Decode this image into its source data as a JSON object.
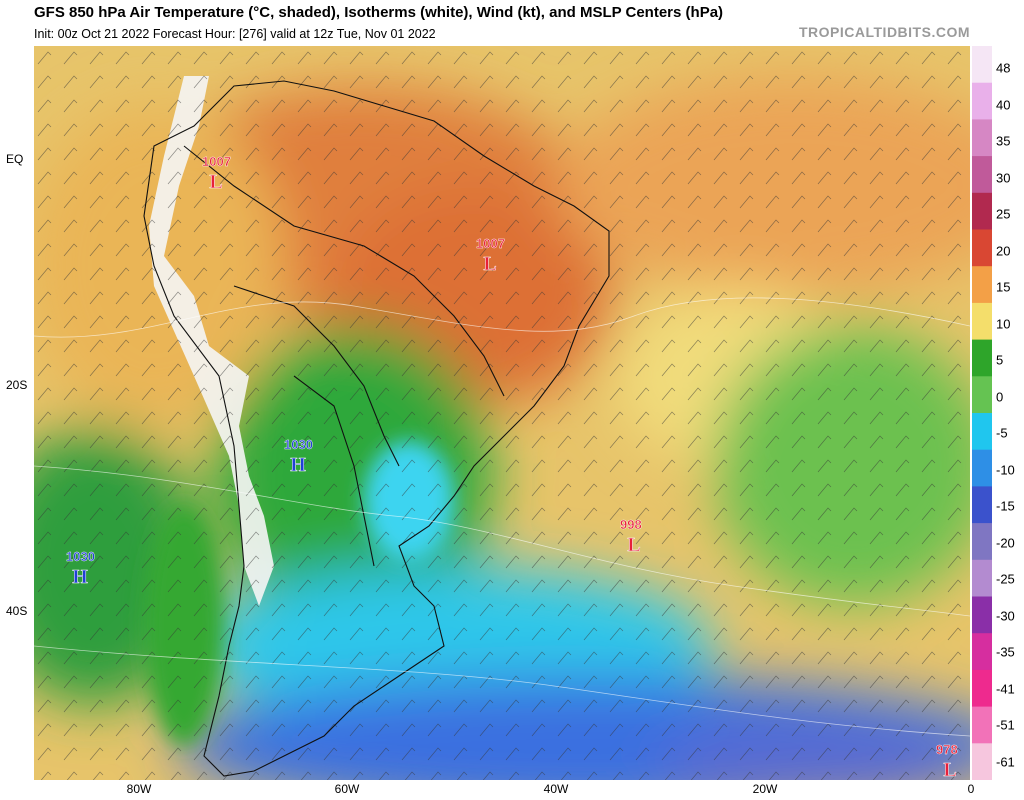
{
  "header": {
    "title": "GFS 850 hPa Air Temperature (°C, shaded), Isotherms (white), Wind (kt), and MSLP Centers (hPa)",
    "subtitle": "Init: 00z Oct 21 2022   Forecast Hour: [276]   valid at 12z Tue, Nov 01 2022",
    "brand": "TROPICALTIDBITS.COM"
  },
  "axes": {
    "lat_labels": [
      "EQ",
      "20S",
      "40S"
    ],
    "lon_labels": [
      "80W",
      "60W",
      "40W",
      "20W",
      "0"
    ]
  },
  "pressure_centers": [
    {
      "type": "L",
      "value": "1007",
      "color": "#e8203a"
    },
    {
      "type": "L",
      "value": "1007",
      "color": "#e8203a"
    },
    {
      "type": "L",
      "value": "998",
      "color": "#e8203a"
    },
    {
      "type": "L",
      "value": "978",
      "color": "#e8203a"
    },
    {
      "type": "H",
      "value": "1030",
      "color": "#1f3fd6"
    },
    {
      "type": "H",
      "value": "1030",
      "color": "#1f3fd6"
    }
  ],
  "colorbar": {
    "labels": [
      "48",
      "40",
      "35",
      "30",
      "25",
      "20",
      "15",
      "10",
      "5",
      "0",
      "-5",
      "-10",
      "-15",
      "-20",
      "-25",
      "-30",
      "-35",
      "-41",
      "-51",
      "-61"
    ],
    "colors": [
      "#f5e6f5",
      "#e9b0ea",
      "#d687c4",
      "#c05a9a",
      "#b1294f",
      "#d94733",
      "#f3a047",
      "#f4de6b",
      "#2ea52a",
      "#65c352",
      "#20c6ee",
      "#2e8fe6",
      "#3b52cc",
      "#7f76c2",
      "#b38bd0",
      "#8a2fa8",
      "#d62e9f",
      "#ee2a8e",
      "#f272b8",
      "#f6c6de"
    ]
  }
}
